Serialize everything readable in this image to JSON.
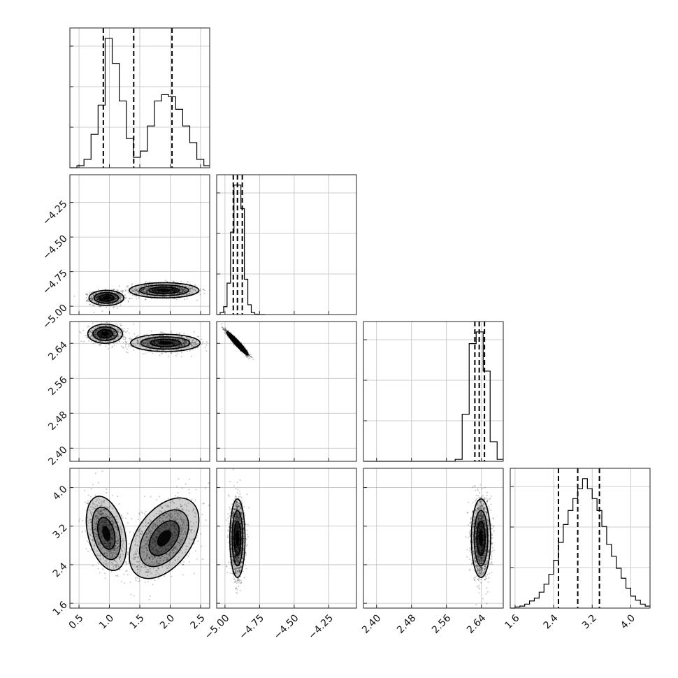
{
  "chart_data": {
    "type": "corner",
    "parameters": [
      {
        "index": 0,
        "range": [
          0.35,
          2.65
        ],
        "ticks": [
          0.5,
          1.0,
          1.5,
          2.0,
          2.5
        ],
        "tick_labels": [
          "0.5",
          "1.0",
          "1.5",
          "2.0",
          "2.5"
        ],
        "quantiles": [
          0.9,
          1.4,
          2.03
        ]
      },
      {
        "index": 1,
        "range": [
          -5.06,
          -4.05
        ],
        "ticks": [
          -5.0,
          -4.75,
          -4.5,
          -4.25
        ],
        "tick_labels": [
          "−5.00",
          "−4.75",
          "−4.50",
          "−4.25"
        ],
        "quantiles": [
          -4.94,
          -4.91,
          -4.875
        ]
      },
      {
        "index": 2,
        "range": [
          2.37,
          2.69
        ],
        "ticks": [
          2.4,
          2.48,
          2.56,
          2.64
        ],
        "tick_labels": [
          "2.40",
          "2.48",
          "2.56",
          "2.64"
        ],
        "quantiles": [
          2.625,
          2.635,
          2.647
        ]
      },
      {
        "index": 3,
        "range": [
          1.5,
          4.4
        ],
        "ticks": [
          1.6,
          2.4,
          3.2,
          4.0
        ],
        "tick_labels": [
          "1.6",
          "2.4",
          "3.2",
          "4.0"
        ],
        "quantiles": [
          2.5,
          2.9,
          3.35
        ]
      }
    ],
    "histograms": [
      {
        "param": 0,
        "bins": [
          0.35,
          0.466,
          0.582,
          0.698,
          0.814,
          0.93,
          1.046,
          1.162,
          1.278,
          1.394,
          1.51,
          1.626,
          1.742,
          1.858,
          1.974,
          2.09,
          2.206,
          2.322,
          2.438,
          2.554,
          2.65
        ],
        "counts": [
          0,
          5,
          20,
          80,
          150,
          310,
          250,
          160,
          70,
          25,
          40,
          100,
          160,
          175,
          170,
          140,
          100,
          60,
          20,
          5
        ]
      },
      {
        "param": 1,
        "bins": [
          -5.06,
          -5.035,
          -5.01,
          -4.985,
          -4.96,
          -4.935,
          -4.91,
          -4.885,
          -4.86,
          -4.835,
          -4.81,
          -4.785,
          -4.76,
          -4.735,
          -4.71
        ],
        "counts": [
          0,
          5,
          20,
          80,
          210,
          330,
          330,
          270,
          90,
          25,
          5,
          1,
          0,
          0
        ]
      },
      {
        "param": 2,
        "bins": [
          2.37,
          2.58,
          2.596,
          2.612,
          2.628,
          2.644,
          2.66,
          2.676,
          2.69
        ],
        "counts": [
          0,
          5,
          120,
          300,
          330,
          230,
          50,
          5
        ]
      },
      {
        "param": 3,
        "bins": [
          1.5,
          1.6,
          1.7,
          1.8,
          1.9,
          2.0,
          2.1,
          2.2,
          2.3,
          2.4,
          2.5,
          2.6,
          2.7,
          2.8,
          2.9,
          3.0,
          3.1,
          3.2,
          3.3,
          3.4,
          3.5,
          3.6,
          3.7,
          3.8,
          3.9,
          4.0,
          4.1,
          4.2,
          4.3,
          4.4
        ],
        "counts": [
          0,
          3,
          5,
          10,
          18,
          25,
          40,
          60,
          85,
          120,
          165,
          210,
          245,
          275,
          300,
          325,
          300,
          275,
          245,
          205,
          160,
          130,
          100,
          75,
          50,
          30,
          20,
          10,
          5
        ]
      }
    ],
    "pairs": [
      {
        "x_param": 0,
        "y_param": 1,
        "clusters": [
          {
            "cx": 0.95,
            "cy": -4.94,
            "sx": 0.13,
            "sy": 0.025,
            "n": 900
          },
          {
            "cx": 1.9,
            "cy": -4.885,
            "sx": 0.26,
            "sy": 0.025,
            "n": 1000
          }
        ]
      },
      {
        "x_param": 0,
        "y_param": 2,
        "clusters": [
          {
            "cx": 0.93,
            "cy": 2.662,
            "sx": 0.13,
            "sy": 0.01,
            "n": 900
          },
          {
            "cx": 1.92,
            "cy": 2.641,
            "sx": 0.26,
            "sy": 0.009,
            "n": 1000
          }
        ]
      },
      {
        "x_param": 1,
        "y_param": 2,
        "clusters": [
          {
            "cx": -4.91,
            "cy": 2.64,
            "sx": 0.035,
            "sy": 0.012,
            "rho": -0.96,
            "n": 1800
          }
        ]
      },
      {
        "x_param": 0,
        "y_param": 3,
        "clusters": [
          {
            "cx": 0.95,
            "cy": 3.05,
            "sx": 0.15,
            "sy": 0.35,
            "rho": -0.35,
            "n": 900
          },
          {
            "cx": 1.9,
            "cy": 2.95,
            "sx": 0.26,
            "sy": 0.38,
            "rho": 0.45,
            "n": 1000
          }
        ]
      },
      {
        "x_param": 1,
        "y_param": 3,
        "clusters": [
          {
            "cx": -4.91,
            "cy": 2.95,
            "sx": 0.025,
            "sy": 0.37,
            "n": 1800
          }
        ]
      },
      {
        "x_param": 2,
        "y_param": 3,
        "clusters": [
          {
            "cx": 2.639,
            "cy": 2.95,
            "sx": 0.01,
            "sy": 0.37,
            "n": 1800
          }
        ]
      }
    ],
    "grid": true,
    "colors": {
      "ink": "#000000",
      "grid": "#bdbdbd",
      "frame": "#222222"
    }
  }
}
